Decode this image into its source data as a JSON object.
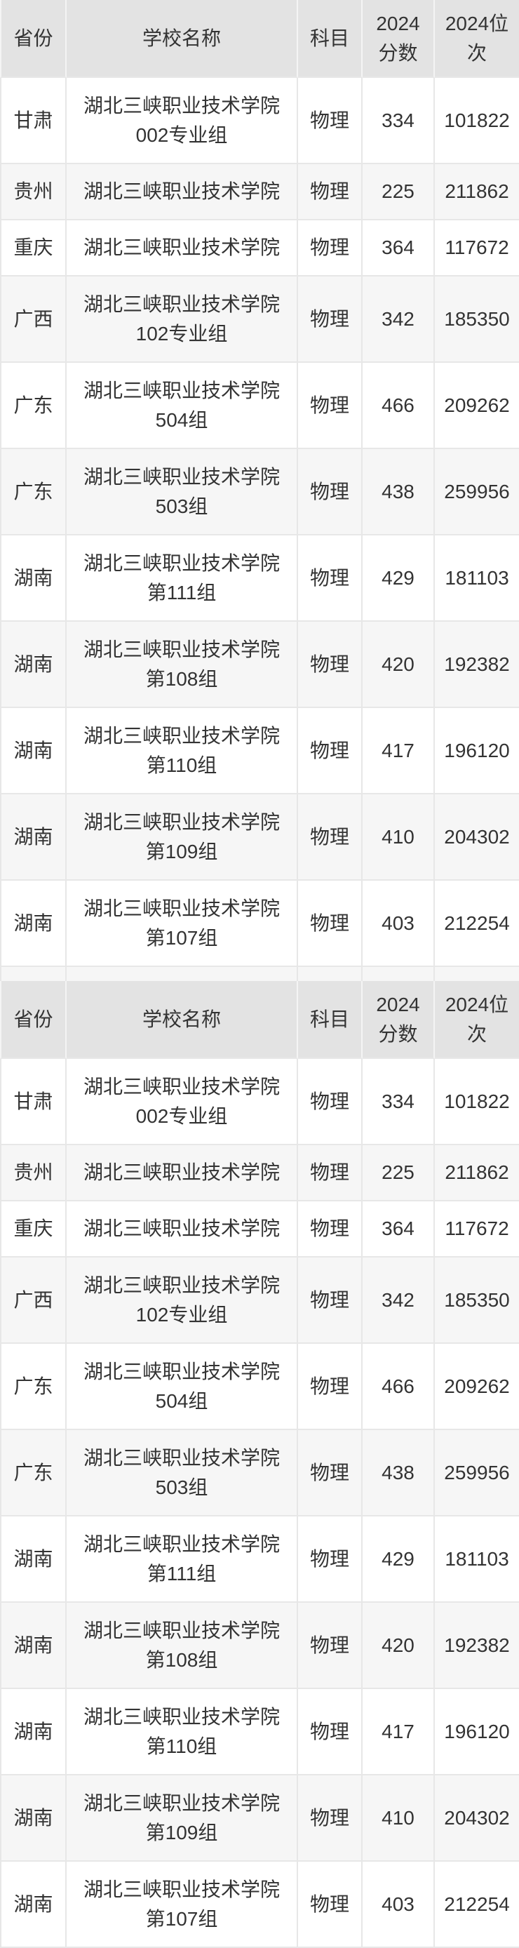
{
  "theme": {
    "header_bg": "#e3e3e3",
    "stripe_bg": "#f6f6f6",
    "row_bg": "#ffffff",
    "border_color": "#e7e7e7",
    "header_divider": "#f4f4f4",
    "text_color": "#333333"
  },
  "table": {
    "columns": [
      {
        "label": "省份"
      },
      {
        "label": "学校名称"
      },
      {
        "label": "科目"
      },
      {
        "label": "2024分数"
      },
      {
        "label": "2024位次"
      }
    ],
    "rows": [
      {
        "province": "甘肃",
        "school": "湖北三峡职业技术学院002专业组",
        "subject": "物理",
        "score": "334",
        "rank": "101822"
      },
      {
        "province": "贵州",
        "school": "湖北三峡职业技术学院",
        "subject": "物理",
        "score": "225",
        "rank": "211862"
      },
      {
        "province": "重庆",
        "school": "湖北三峡职业技术学院",
        "subject": "物理",
        "score": "364",
        "rank": "117672"
      },
      {
        "province": "广西",
        "school": "湖北三峡职业技术学院102专业组",
        "subject": "物理",
        "score": "342",
        "rank": "185350"
      },
      {
        "province": "广东",
        "school": "湖北三峡职业技术学院504组",
        "subject": "物理",
        "score": "466",
        "rank": "209262"
      },
      {
        "province": "广东",
        "school": "湖北三峡职业技术学院503组",
        "subject": "物理",
        "score": "438",
        "rank": "259956"
      },
      {
        "province": "湖南",
        "school": "湖北三峡职业技术学院第111组",
        "subject": "物理",
        "score": "429",
        "rank": "181103"
      },
      {
        "province": "湖南",
        "school": "湖北三峡职业技术学院第108组",
        "subject": "物理",
        "score": "420",
        "rank": "192382"
      },
      {
        "province": "湖南",
        "school": "湖北三峡职业技术学院第110组",
        "subject": "物理",
        "score": "417",
        "rank": "196120"
      },
      {
        "province": "湖南",
        "school": "湖北三峡职业技术学院第109组",
        "subject": "物理",
        "score": "410",
        "rank": "204302"
      },
      {
        "province": "湖南",
        "school": "湖北三峡职业技术学院第107组",
        "subject": "物理",
        "score": "403",
        "rank": "212254"
      }
    ]
  }
}
